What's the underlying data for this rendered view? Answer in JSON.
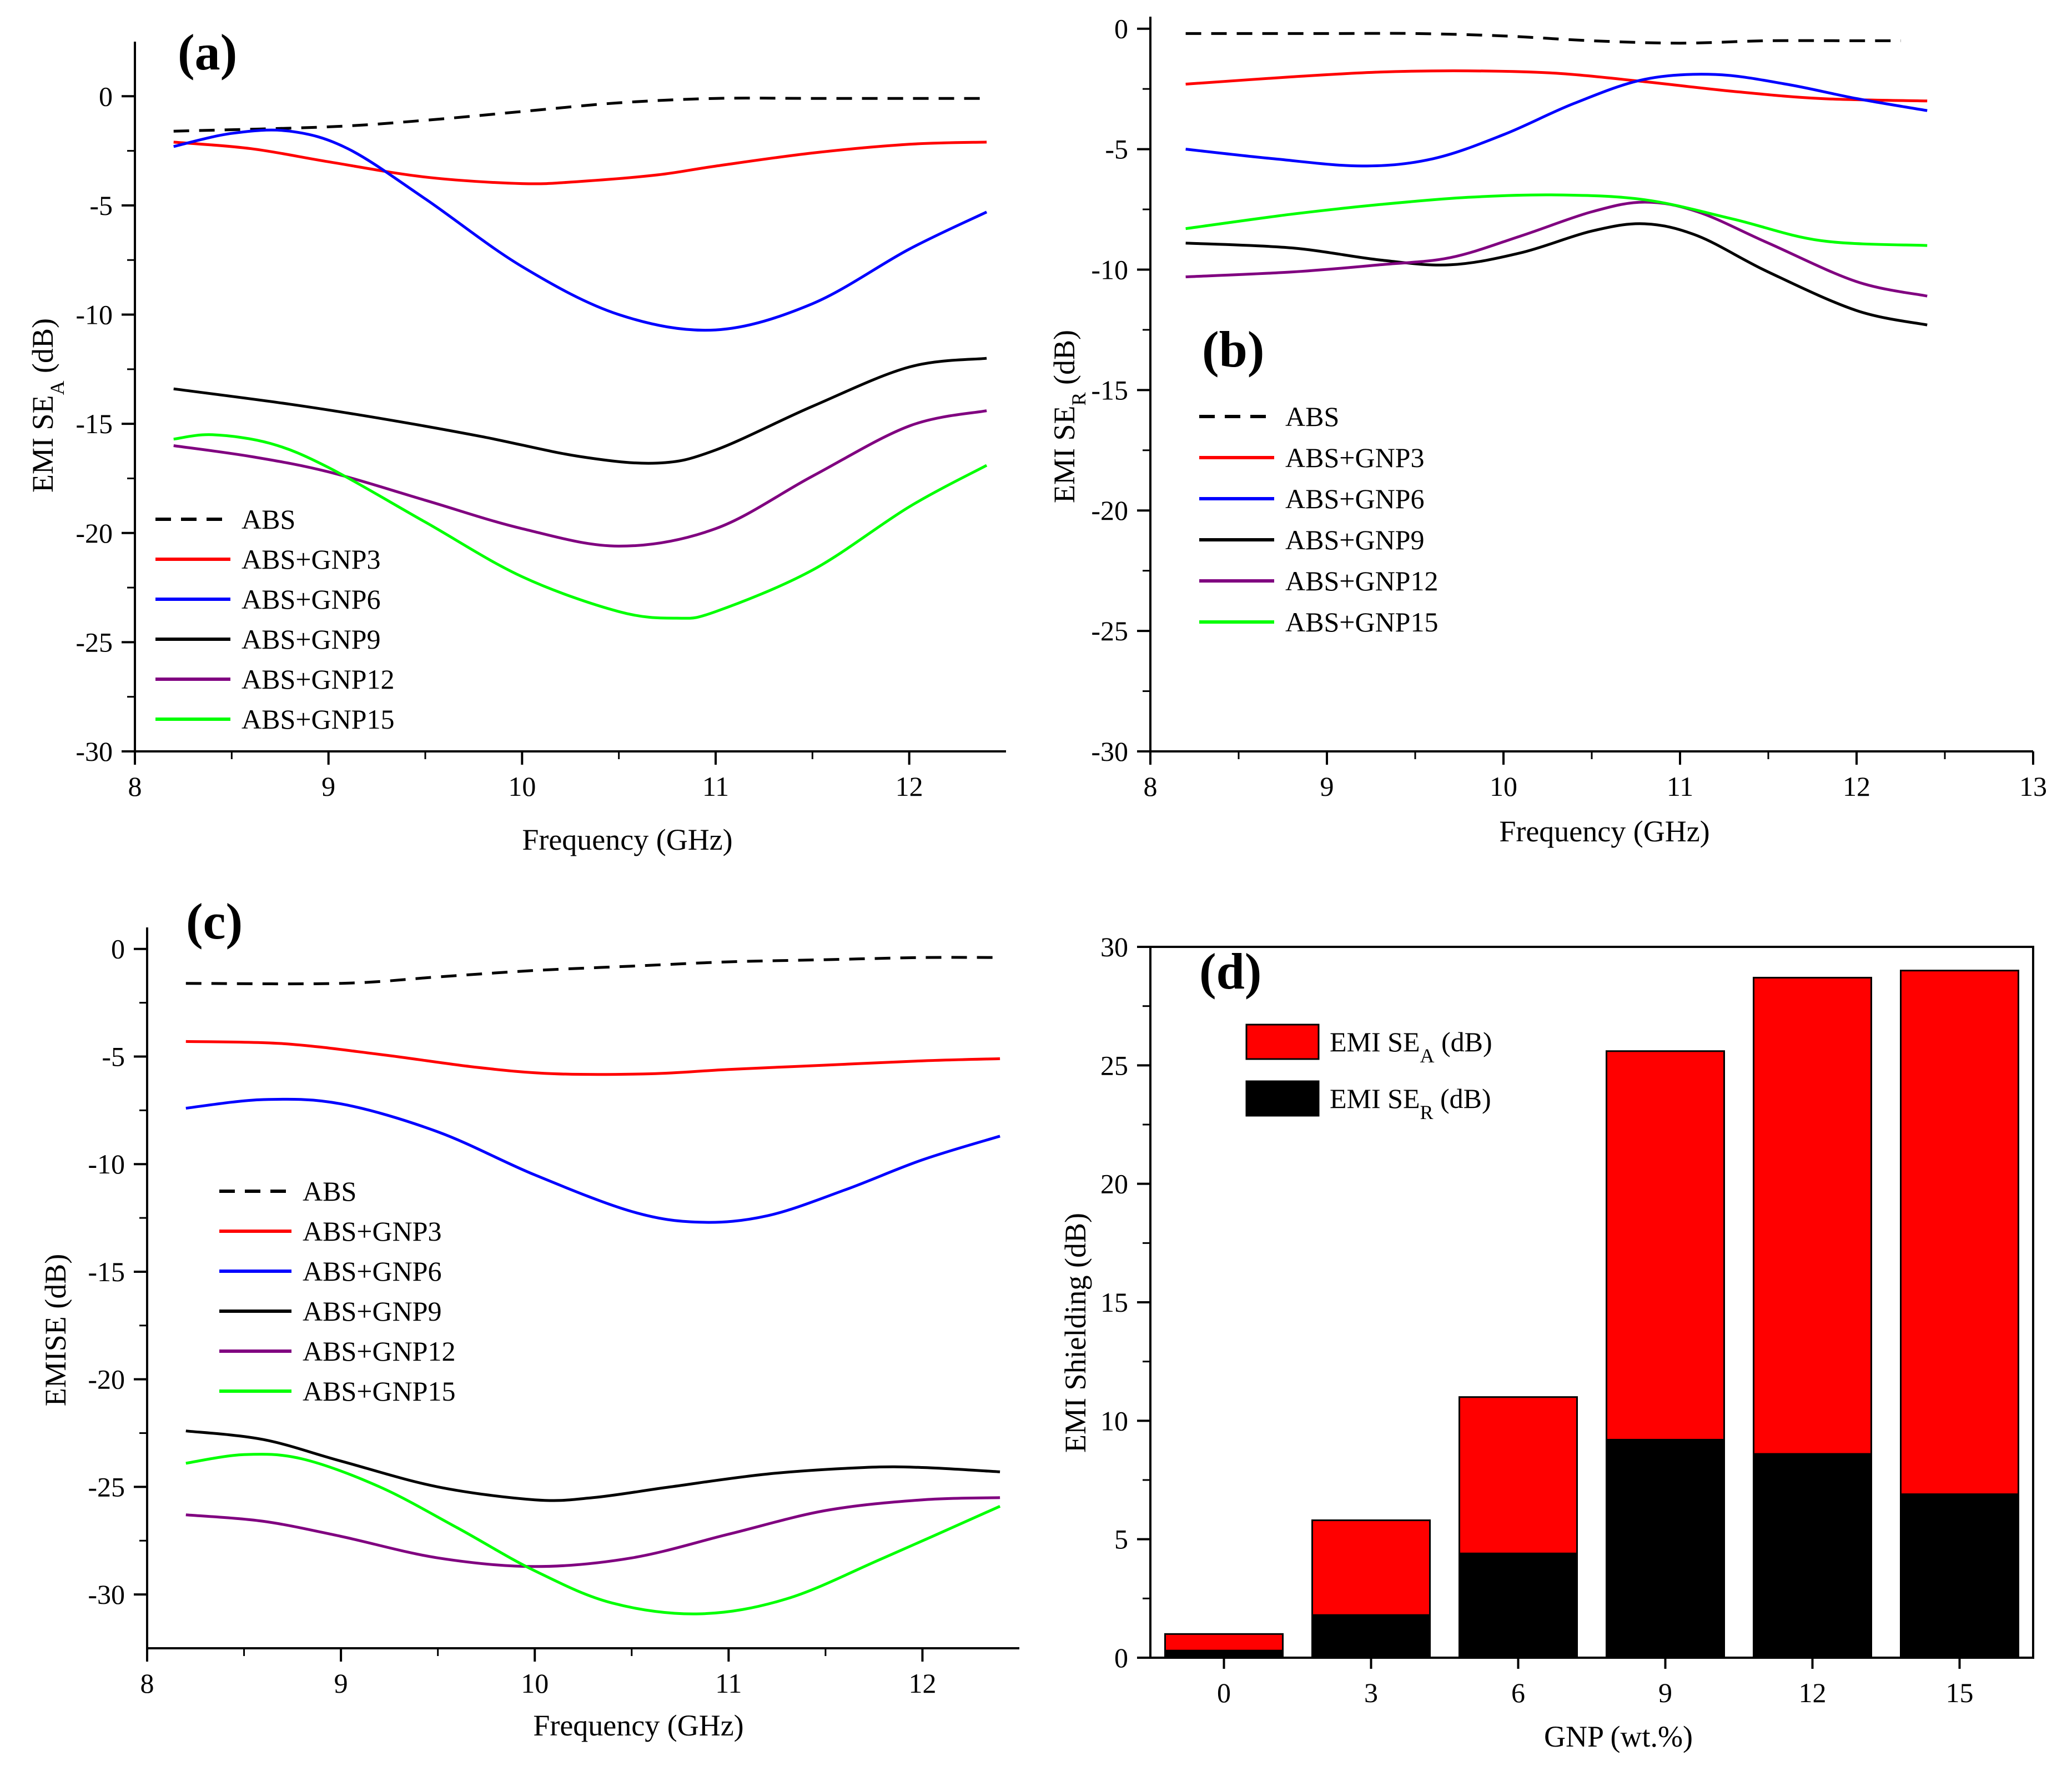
{
  "figure": {
    "panels": [
      "(a)",
      "(b)",
      "(c)",
      "(d)"
    ]
  },
  "chart_data": [
    {
      "panel_label": "(a)",
      "type": "line",
      "xlabel": "Frequency (GHz)",
      "ylabel_main": "EMI SE",
      "ylabel_sub": "A",
      "ylabel_tail": " (dB)",
      "xlim": [
        8,
        12.5
      ],
      "ylim": [
        -30,
        2.5
      ],
      "xticks": [
        8,
        9,
        10,
        11,
        12
      ],
      "yticks": [
        0,
        -5,
        -10,
        -15,
        -20,
        -25,
        -30
      ],
      "legend": "bottom-left",
      "series": [
        {
          "name": "ABS",
          "color": "#000000",
          "dash": true,
          "x": [
            8.2,
            9.0,
            9.5,
            10.0,
            10.5,
            11.0,
            11.5,
            12.0,
            12.4
          ],
          "y": [
            -1.6,
            -1.4,
            -1.1,
            -0.7,
            -0.3,
            -0.1,
            -0.1,
            -0.1,
            -0.1
          ]
        },
        {
          "name": "ABS+GNP3",
          "color": "#ff0000",
          "x": [
            8.2,
            8.6,
            9.0,
            9.5,
            10.0,
            10.3,
            10.7,
            11.0,
            11.5,
            12.0,
            12.4
          ],
          "y": [
            -2.1,
            -2.4,
            -3.0,
            -3.7,
            -4.0,
            -3.9,
            -3.6,
            -3.2,
            -2.6,
            -2.2,
            -2.1
          ]
        },
        {
          "name": "ABS+GNP6",
          "color": "#0000ff",
          "x": [
            8.2,
            8.5,
            8.8,
            9.1,
            9.5,
            10.0,
            10.5,
            11.0,
            11.5,
            12.0,
            12.4
          ],
          "y": [
            -2.3,
            -1.7,
            -1.6,
            -2.4,
            -4.7,
            -7.8,
            -10.0,
            -10.7,
            -9.5,
            -7.0,
            -5.3
          ]
        },
        {
          "name": "ABS+GNP9",
          "color": "#000000",
          "x": [
            8.2,
            8.8,
            9.3,
            9.8,
            10.3,
            10.7,
            11.0,
            11.5,
            12.0,
            12.4
          ],
          "y": [
            -13.4,
            -14.1,
            -14.8,
            -15.6,
            -16.5,
            -16.8,
            -16.2,
            -14.2,
            -12.4,
            -12.0
          ]
        },
        {
          "name": "ABS+GNP12",
          "color": "#800080",
          "x": [
            8.2,
            8.6,
            9.0,
            9.5,
            10.0,
            10.5,
            11.0,
            11.5,
            12.0,
            12.4
          ],
          "y": [
            -16.0,
            -16.5,
            -17.2,
            -18.5,
            -19.8,
            -20.6,
            -19.8,
            -17.4,
            -15.1,
            -14.4
          ]
        },
        {
          "name": "ABS+GNP15",
          "color": "#00ff00",
          "x": [
            8.2,
            8.4,
            8.7,
            9.0,
            9.5,
            10.0,
            10.5,
            10.8,
            11.0,
            11.5,
            12.0,
            12.4
          ],
          "y": [
            -15.7,
            -15.5,
            -15.9,
            -17.0,
            -19.5,
            -22.0,
            -23.6,
            -23.9,
            -23.6,
            -21.7,
            -18.8,
            -16.9
          ]
        }
      ]
    },
    {
      "panel_label": "(b)",
      "type": "line",
      "xlabel": "Frequency (GHz)",
      "ylabel_main": "EMI SE",
      "ylabel_sub": "R",
      "ylabel_tail": " (dB)",
      "xlim": [
        8,
        13
      ],
      "ylim": [
        -30,
        0.5
      ],
      "xticks": [
        8,
        9,
        10,
        11,
        12,
        13
      ],
      "yticks": [
        0,
        -5,
        -10,
        -15,
        -20,
        -25,
        -30
      ],
      "legend": "left",
      "series": [
        {
          "name": "ABS",
          "color": "#000000",
          "dash": true,
          "x": [
            8.2,
            9.0,
            9.5,
            10.0,
            10.5,
            11.0,
            11.5,
            12.0,
            12.25
          ],
          "y": [
            -0.2,
            -0.2,
            -0.2,
            -0.3,
            -0.5,
            -0.6,
            -0.5,
            -0.5,
            -0.5
          ]
        },
        {
          "name": "ABS+GNP3",
          "color": "#ff0000",
          "x": [
            8.2,
            8.8,
            9.3,
            9.8,
            10.3,
            10.8,
            11.3,
            11.8,
            12.4
          ],
          "y": [
            -2.3,
            -2.0,
            -1.8,
            -1.75,
            -1.85,
            -2.2,
            -2.6,
            -2.9,
            -3.0
          ]
        },
        {
          "name": "ABS+GNP6",
          "color": "#0000ff",
          "x": [
            8.2,
            8.7,
            9.2,
            9.6,
            10.0,
            10.4,
            10.8,
            11.2,
            11.6,
            12.0,
            12.4
          ],
          "y": [
            -5.0,
            -5.4,
            -5.7,
            -5.4,
            -4.4,
            -3.1,
            -2.1,
            -1.9,
            -2.3,
            -2.9,
            -3.4
          ]
        },
        {
          "name": "ABS+GNP9",
          "color": "#000000",
          "x": [
            8.2,
            8.8,
            9.3,
            9.7,
            10.1,
            10.5,
            10.8,
            11.1,
            11.5,
            12.0,
            12.4
          ],
          "y": [
            -8.9,
            -9.1,
            -9.6,
            -9.8,
            -9.3,
            -8.4,
            -8.1,
            -8.6,
            -10.1,
            -11.7,
            -12.3
          ]
        },
        {
          "name": "ABS+GNP12",
          "color": "#800080",
          "x": [
            8.2,
            8.8,
            9.3,
            9.7,
            10.1,
            10.5,
            10.8,
            11.1,
            11.5,
            12.0,
            12.4
          ],
          "y": [
            -10.3,
            -10.1,
            -9.8,
            -9.5,
            -8.6,
            -7.6,
            -7.2,
            -7.6,
            -8.9,
            -10.5,
            -11.1
          ]
        },
        {
          "name": "ABS+GNP15",
          "color": "#00ff00",
          "x": [
            8.2,
            8.8,
            9.3,
            9.8,
            10.3,
            10.8,
            11.3,
            11.8,
            12.4
          ],
          "y": [
            -8.3,
            -7.7,
            -7.3,
            -7.0,
            -6.9,
            -7.1,
            -7.9,
            -8.8,
            -9.0
          ]
        }
      ]
    },
    {
      "panel_label": "(c)",
      "type": "line",
      "xlabel": "Frequency (GHz)",
      "ylabel": "EMISE (dB)",
      "xlim": [
        8,
        12.5
      ],
      "ylim": [
        -32.5,
        1
      ],
      "xticks": [
        8,
        9,
        10,
        11,
        12
      ],
      "yticks": [
        0,
        -5,
        -10,
        -15,
        -20,
        -25,
        -30
      ],
      "legend": "left",
      "series": [
        {
          "name": "ABS",
          "color": "#000000",
          "dash": true,
          "x": [
            8.2,
            9.0,
            9.5,
            10.0,
            10.5,
            11.0,
            11.5,
            12.0,
            12.4
          ],
          "y": [
            -1.6,
            -1.6,
            -1.3,
            -1.0,
            -0.8,
            -0.6,
            -0.5,
            -0.4,
            -0.4
          ]
        },
        {
          "name": "ABS+GNP3",
          "color": "#ff0000",
          "x": [
            8.2,
            8.7,
            9.2,
            9.7,
            10.1,
            10.6,
            11.0,
            11.5,
            12.0,
            12.4
          ],
          "y": [
            -4.3,
            -4.4,
            -4.9,
            -5.5,
            -5.8,
            -5.8,
            -5.6,
            -5.4,
            -5.2,
            -5.1
          ]
        },
        {
          "name": "ABS+GNP6",
          "color": "#0000ff",
          "x": [
            8.2,
            8.6,
            9.0,
            9.5,
            10.0,
            10.5,
            10.85,
            11.2,
            11.6,
            12.0,
            12.4
          ],
          "y": [
            -7.4,
            -7.0,
            -7.2,
            -8.5,
            -10.5,
            -12.2,
            -12.7,
            -12.4,
            -11.2,
            -9.8,
            -8.7
          ]
        },
        {
          "name": "ABS+GNP9",
          "color": "#000000",
          "x": [
            8.2,
            8.6,
            9.0,
            9.5,
            10.0,
            10.3,
            10.7,
            11.2,
            11.7,
            12.0,
            12.4
          ],
          "y": [
            -22.4,
            -22.8,
            -23.8,
            -25.0,
            -25.6,
            -25.5,
            -25.0,
            -24.4,
            -24.1,
            -24.1,
            -24.3
          ]
        },
        {
          "name": "ABS+GNP12",
          "color": "#800080",
          "x": [
            8.2,
            8.6,
            9.0,
            9.5,
            10.0,
            10.5,
            11.0,
            11.5,
            12.0,
            12.4
          ],
          "y": [
            -26.3,
            -26.6,
            -27.3,
            -28.3,
            -28.7,
            -28.3,
            -27.2,
            -26.1,
            -25.6,
            -25.5
          ]
        },
        {
          "name": "ABS+GNP15",
          "color": "#00ff00",
          "x": [
            8.2,
            8.5,
            8.8,
            9.2,
            9.6,
            10.0,
            10.4,
            10.85,
            11.3,
            11.8,
            12.4
          ],
          "y": [
            -23.9,
            -23.5,
            -23.7,
            -25.0,
            -26.9,
            -28.9,
            -30.4,
            -30.9,
            -30.2,
            -28.3,
            -25.9
          ]
        }
      ]
    },
    {
      "panel_label": "(d)",
      "type": "bar",
      "stacked": true,
      "xlabel": "GNP (wt.%)",
      "ylabel": "EMI Shielding (dB)",
      "categories": [
        "0",
        "3",
        "6",
        "9",
        "12",
        "15"
      ],
      "ylim": [
        0,
        30
      ],
      "yticks": [
        0,
        5,
        10,
        15,
        20,
        25,
        30
      ],
      "legend": "top-left",
      "series": [
        {
          "name_main": "EMI SE",
          "name_sub": "R",
          "name_tail": " (dB)",
          "color": "#000000",
          "values": [
            0.3,
            1.8,
            4.4,
            9.2,
            8.6,
            6.9
          ]
        },
        {
          "name_main": "EMI SE",
          "name_sub": "A",
          "name_tail": " (dB)",
          "color": "#ff0000",
          "values": [
            0.7,
            4.0,
            6.6,
            16.4,
            20.1,
            22.1
          ]
        }
      ]
    }
  ]
}
